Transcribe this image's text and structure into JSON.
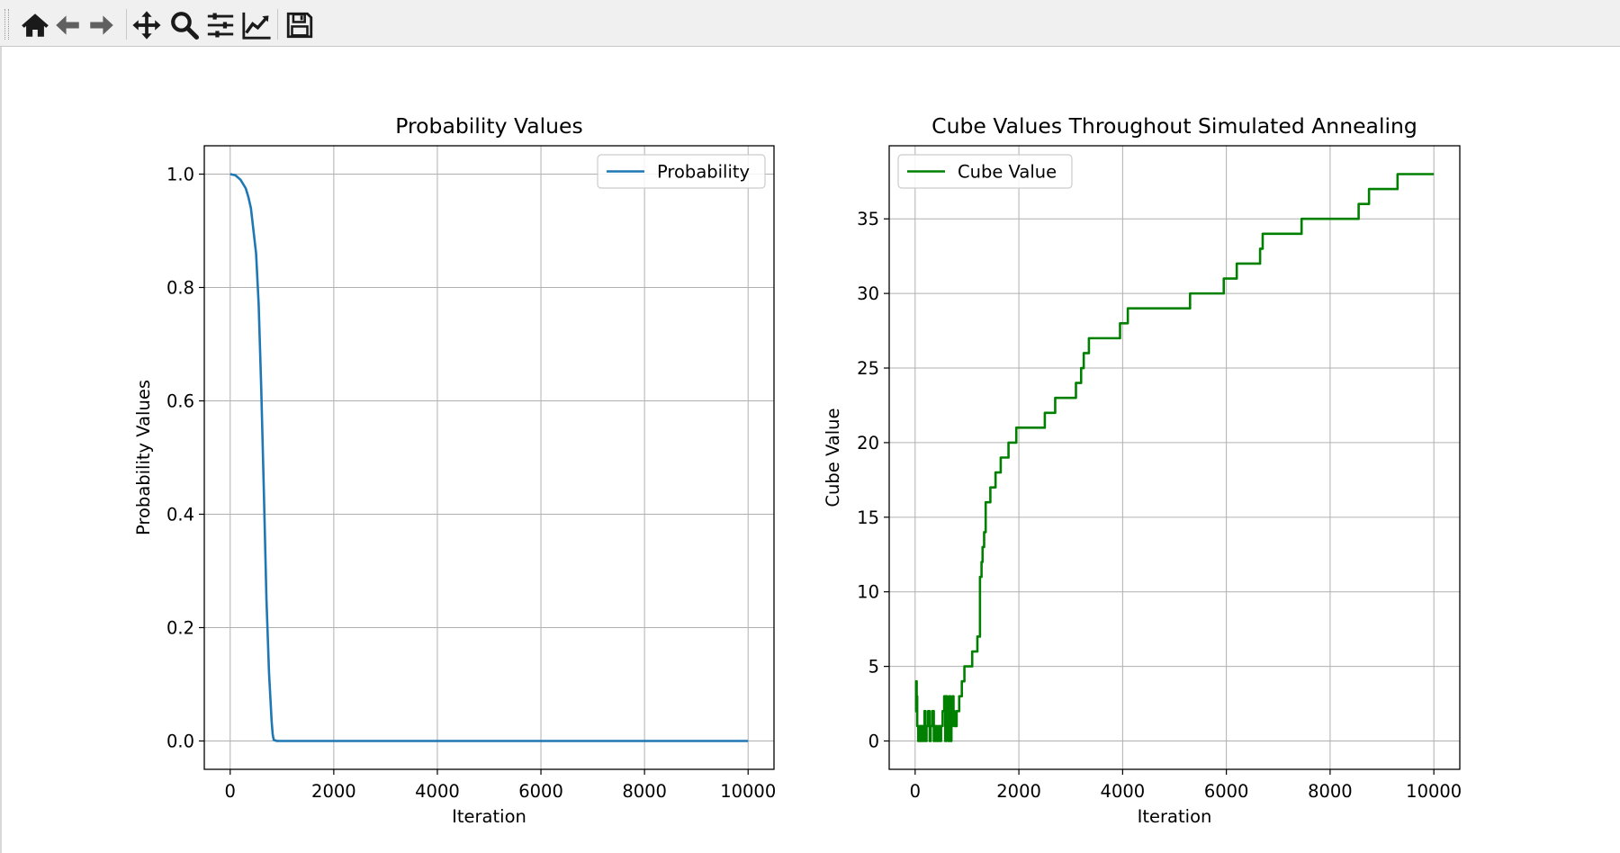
{
  "toolbar": {
    "items": [
      {
        "name": "home",
        "icon": "home-icon"
      },
      {
        "name": "back",
        "icon": "arrow-left-icon"
      },
      {
        "name": "forward",
        "icon": "arrow-right-icon"
      },
      {
        "name": "pan",
        "icon": "move-icon"
      },
      {
        "name": "zoom",
        "icon": "magnifier-icon"
      },
      {
        "name": "configure-subplots",
        "icon": "sliders-icon"
      },
      {
        "name": "edit-axis",
        "icon": "line-chart-icon"
      },
      {
        "name": "save",
        "icon": "floppy-disk-icon"
      }
    ]
  },
  "chart_data": [
    {
      "type": "line",
      "title": "Probability Values",
      "xlabel": "Iteration",
      "ylabel": "Probability Values",
      "xlim": [
        -500,
        10500
      ],
      "ylim": [
        -0.05,
        1.05
      ],
      "xticks": [
        0,
        2000,
        4000,
        6000,
        8000,
        10000
      ],
      "yticks": [
        0.0,
        0.2,
        0.4,
        0.6,
        0.8,
        1.0
      ],
      "xtick_labels": [
        "0",
        "2000",
        "4000",
        "6000",
        "8000",
        "10000"
      ],
      "ytick_labels": [
        "0.0",
        "0.2",
        "0.4",
        "0.6",
        "0.8",
        "1.0"
      ],
      "grid": true,
      "legend": "upper right",
      "series": [
        {
          "name": "Probability",
          "color": "#1f77b4",
          "x": [
            0,
            100,
            200,
            300,
            350,
            400,
            450,
            500,
            550,
            600,
            650,
            700,
            750,
            800,
            820,
            840,
            900,
            1000,
            2000,
            4000,
            6000,
            8000,
            10000
          ],
          "y": [
            1.0,
            0.998,
            0.99,
            0.975,
            0.96,
            0.94,
            0.9,
            0.86,
            0.77,
            0.62,
            0.44,
            0.25,
            0.12,
            0.035,
            0.012,
            0.002,
            0.0,
            0.0,
            0.0,
            0.0,
            0.0,
            0.0,
            0.0
          ]
        }
      ]
    },
    {
      "type": "line",
      "title": "Cube Values Throughout Simulated Annealing",
      "xlabel": "Iteration",
      "ylabel": "Cube Value",
      "xlim": [
        -500,
        10500
      ],
      "ylim": [
        -1.9,
        39.9
      ],
      "xticks": [
        0,
        2000,
        4000,
        6000,
        8000,
        10000
      ],
      "yticks": [
        0,
        5,
        10,
        15,
        20,
        25,
        30,
        35
      ],
      "xtick_labels": [
        "0",
        "2000",
        "4000",
        "6000",
        "8000",
        "10000"
      ],
      "ytick_labels": [
        "0",
        "5",
        "10",
        "15",
        "20",
        "25",
        "30",
        "35"
      ],
      "grid": true,
      "legend": "upper left",
      "series": [
        {
          "name": "Cube Value",
          "color": "#008000",
          "step": true,
          "x": [
            0,
            20,
            30,
            40,
            60,
            80,
            100,
            120,
            150,
            180,
            200,
            220,
            250,
            280,
            300,
            330,
            360,
            390,
            420,
            450,
            480,
            500,
            530,
            560,
            580,
            600,
            620,
            640,
            660,
            680,
            700,
            720,
            740,
            760,
            800,
            850,
            900,
            950,
            1000,
            1100,
            1200,
            1250,
            1280,
            1300,
            1330,
            1360,
            1400,
            1430,
            1450,
            1550,
            1650,
            1800,
            1950,
            2000,
            2050,
            2500,
            2700,
            3100,
            3200,
            3250,
            3350,
            3400,
            3950,
            4100,
            5300,
            5950,
            6200,
            6650,
            6700,
            7450,
            8550,
            8750,
            9300,
            10000
          ],
          "y": [
            2,
            4,
            3,
            1,
            0,
            1,
            0,
            1,
            0,
            2,
            0,
            1,
            2,
            0,
            1,
            2,
            0,
            1,
            0,
            1,
            0,
            1,
            2,
            3,
            0,
            3,
            2,
            0,
            3,
            0,
            1,
            3,
            2,
            1,
            2,
            3,
            4,
            5,
            5,
            6,
            7,
            11,
            12,
            13,
            14,
            16,
            16,
            16,
            17,
            18,
            19,
            20,
            21,
            21,
            21,
            22,
            23,
            24,
            25,
            26,
            27,
            27,
            28,
            29,
            30,
            31,
            32,
            33,
            34,
            35,
            36,
            37,
            38,
            38
          ]
        }
      ]
    }
  ]
}
